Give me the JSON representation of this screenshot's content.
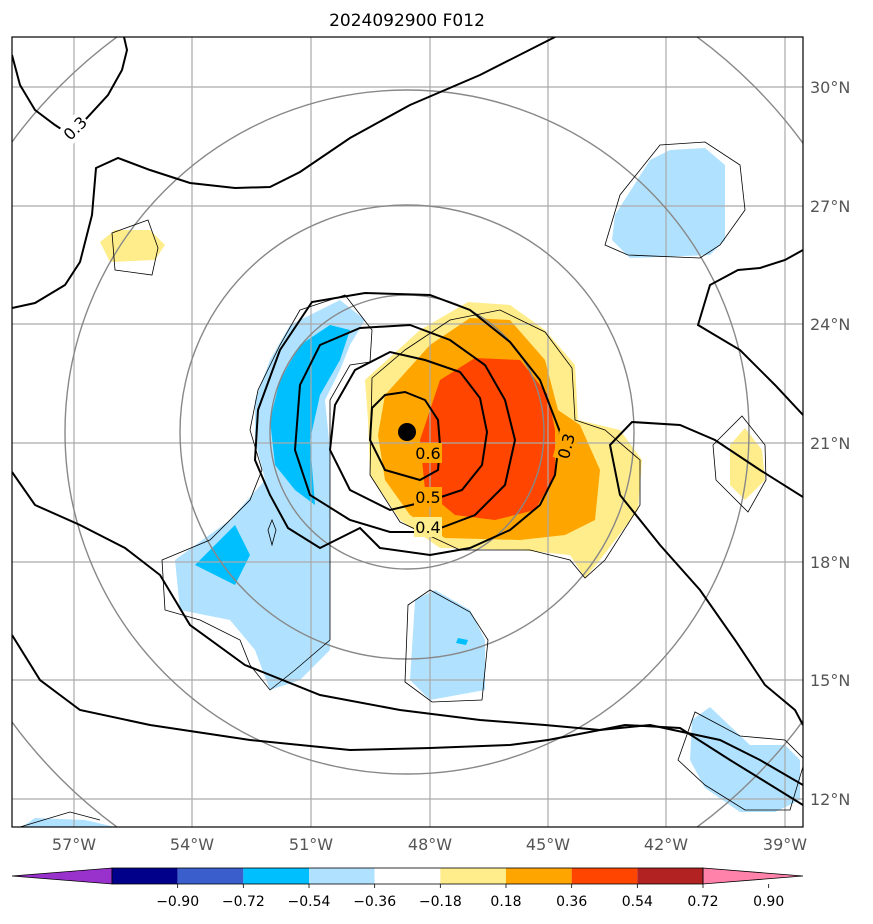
{
  "chart_data": {
    "type": "map",
    "title": "2024092900 F012",
    "lon_range": [
      -59,
      -39.5
    ],
    "lat_range": [
      11.2,
      31.2
    ],
    "lon_ticks": [
      {
        "value": -57,
        "label": "57°W"
      },
      {
        "value": -54,
        "label": "54°W"
      },
      {
        "value": -51,
        "label": "51°W"
      },
      {
        "value": -48,
        "label": "48°W"
      },
      {
        "value": -45,
        "label": "45°W"
      },
      {
        "value": -42,
        "label": "42°W"
      },
      {
        "value": -39,
        "label": "39°W"
      }
    ],
    "lat_ticks": [
      {
        "value": 12,
        "label": "12°N"
      },
      {
        "value": 15,
        "label": "15°N"
      },
      {
        "value": 18,
        "label": "18°N"
      },
      {
        "value": 21,
        "label": "21°N"
      },
      {
        "value": 24,
        "label": "24°N"
      },
      {
        "value": 27,
        "label": "27°N"
      },
      {
        "value": 30,
        "label": "30°N"
      }
    ],
    "grid": true,
    "center_marker": {
      "lon": -48.7,
      "lat": 21.3
    },
    "range_rings_deg": [
      3.5,
      6.4,
      9.4,
      12.3
    ],
    "contour_labels": [
      {
        "text": "0.3",
        "lon": -58.0,
        "lat": 29.0,
        "angle": -45
      },
      {
        "text": "0.3",
        "lon": -43.6,
        "lat": 20.9,
        "angle": -75
      },
      {
        "text": "0.6",
        "lon": -48.0,
        "lat": 20.6,
        "angle": 0
      },
      {
        "text": "0.5",
        "lon": -48.0,
        "lat": 19.3,
        "angle": 0
      },
      {
        "text": "0.4",
        "lon": -48.0,
        "lat": 18.6,
        "angle": 0
      }
    ],
    "colorbar": {
      "colors": [
        "#9932cc",
        "#00008b",
        "#3a5fcd",
        "#00bfff",
        "#b0e2ff",
        "#ffffff",
        "#ffec8b",
        "#ffa500",
        "#ff4500",
        "#b22222",
        "#ff82ab"
      ],
      "tick_labels": [
        "−0.90",
        "−0.72",
        "−0.54",
        "−0.36",
        "−0.18",
        "0.18",
        "0.36",
        "0.54",
        "0.72",
        "0.90"
      ],
      "extend": "both"
    }
  }
}
